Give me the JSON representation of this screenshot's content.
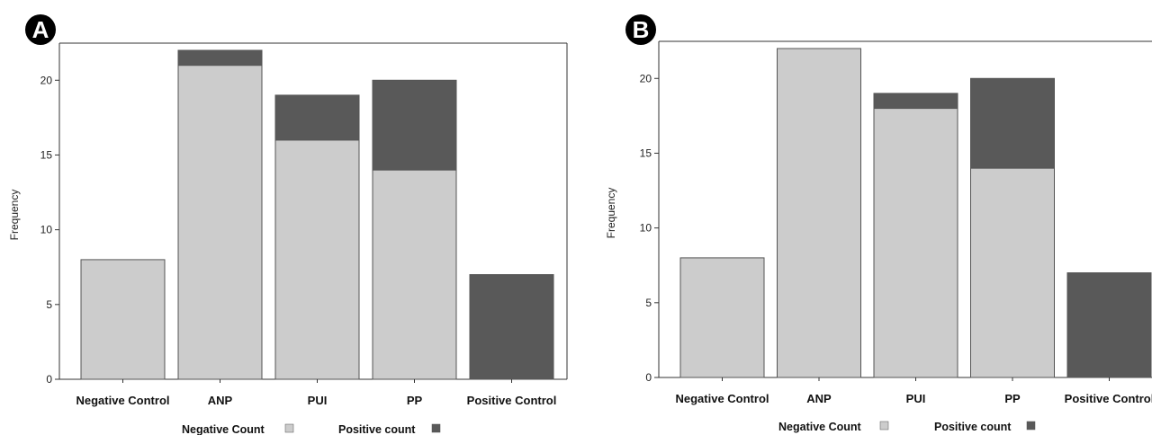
{
  "colors": {
    "negative": "#cccccc",
    "positive": "#595959",
    "outline": "#555555",
    "badge": "#000000"
  },
  "chart_data": [
    {
      "panel_label": "A",
      "type": "bar",
      "stacked": true,
      "categories": [
        "Negative Control",
        "ANP",
        "PUI",
        "PP",
        "Positive Control"
      ],
      "series": [
        {
          "name": "Negative Count",
          "values": [
            8,
            21,
            16,
            14,
            0
          ]
        },
        {
          "name": "Positive count",
          "values": [
            0,
            1,
            3,
            6,
            7
          ]
        }
      ],
      "ylabel": "Frequency",
      "ylim": [
        0,
        22
      ],
      "yticks": [
        "0",
        "5",
        "10",
        "15",
        "20"
      ],
      "legend_position": "bottom"
    },
    {
      "panel_label": "B",
      "type": "bar",
      "stacked": true,
      "categories": [
        "Negative Control",
        "ANP",
        "PUI",
        "PP",
        "Positive Control"
      ],
      "series": [
        {
          "name": "Negative Count",
          "values": [
            8,
            22,
            18,
            14,
            0
          ]
        },
        {
          "name": "Positive count",
          "values": [
            0,
            0,
            1,
            6,
            7
          ]
        }
      ],
      "ylabel": "Frequency",
      "ylim": [
        0,
        22
      ],
      "yticks": [
        "0",
        "5",
        "10",
        "15",
        "20"
      ],
      "legend_position": "bottom"
    }
  ]
}
